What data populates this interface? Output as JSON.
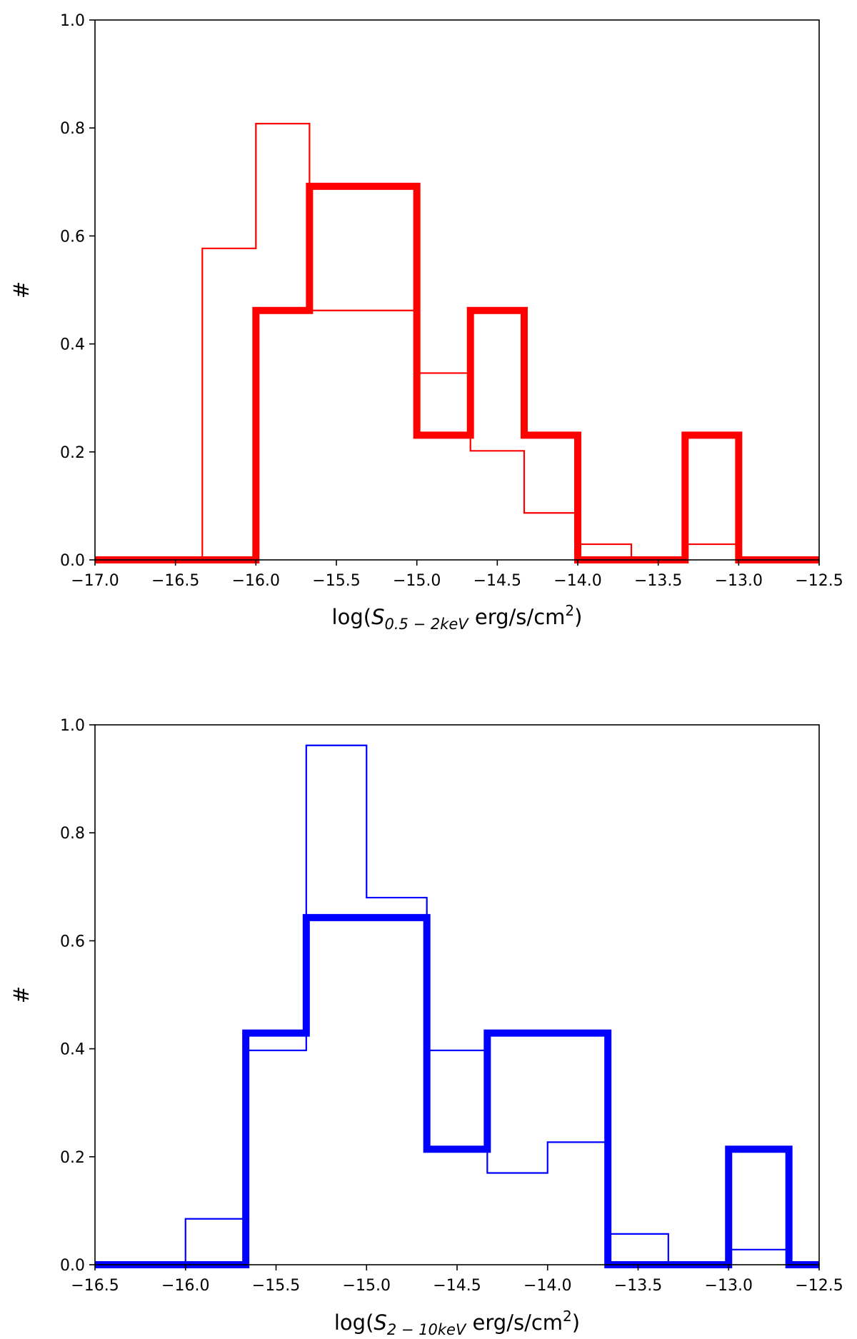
{
  "chart_data": [
    {
      "type": "histogram",
      "xlabel": {
        "prefix": "log(",
        "symbol": "S",
        "subscript": "0.5 − 2keV",
        "unit": " erg/s/cm",
        "superscript": "2",
        "suffix": ")"
      },
      "ylabel": "#",
      "xlim": [
        -17.0,
        -12.5
      ],
      "ylim": [
        0.0,
        1.0
      ],
      "xticks": [
        -17.0,
        -16.5,
        -16.0,
        -15.5,
        -15.0,
        -14.5,
        -14.0,
        -13.5,
        -13.0,
        -12.5
      ],
      "xtick_labels": [
        "−17.0",
        "−16.5",
        "−16.0",
        "−15.5",
        "−15.0",
        "−14.5",
        "−14.0",
        "−13.5",
        "−13.0",
        "−12.5"
      ],
      "yticks": [
        0.0,
        0.2,
        0.4,
        0.6,
        0.8,
        1.0
      ],
      "ytick_labels": [
        "0.0",
        "0.2",
        "0.4",
        "0.6",
        "0.8",
        "1.0"
      ],
      "grid": false,
      "series": [
        {
          "style": "thin",
          "color": "#ff0000",
          "steps": [
            {
              "x0": -17.0,
              "x1": -16.333,
              "y": 0.0
            },
            {
              "x0": -16.333,
              "x1": -16.0,
              "y": 0.577
            },
            {
              "x0": -16.0,
              "x1": -15.667,
              "y": 0.808
            },
            {
              "x0": -15.667,
              "x1": -15.0,
              "y": 0.462
            },
            {
              "x0": -15.0,
              "x1": -14.667,
              "y": 0.346
            },
            {
              "x0": -14.667,
              "x1": -14.333,
              "y": 0.202
            },
            {
              "x0": -14.333,
              "x1": -14.0,
              "y": 0.087
            },
            {
              "x0": -14.0,
              "x1": -13.667,
              "y": 0.029
            },
            {
              "x0": -13.667,
              "x1": -13.333,
              "y": 0.0
            },
            {
              "x0": -13.333,
              "x1": -13.0,
              "y": 0.029
            },
            {
              "x0": -13.0,
              "x1": -12.5,
              "y": 0.0
            }
          ]
        },
        {
          "style": "thick",
          "color": "#ff0000",
          "steps": [
            {
              "x0": -17.0,
              "x1": -16.0,
              "y": 0.0
            },
            {
              "x0": -16.0,
              "x1": -15.667,
              "y": 0.462
            },
            {
              "x0": -15.667,
              "x1": -15.0,
              "y": 0.692
            },
            {
              "x0": -15.0,
              "x1": -14.667,
              "y": 0.231
            },
            {
              "x0": -14.667,
              "x1": -14.333,
              "y": 0.462
            },
            {
              "x0": -14.333,
              "x1": -14.0,
              "y": 0.231
            },
            {
              "x0": -14.0,
              "x1": -13.333,
              "y": 0.0
            },
            {
              "x0": -13.333,
              "x1": -13.0,
              "y": 0.231
            },
            {
              "x0": -13.0,
              "x1": -12.5,
              "y": 0.0
            }
          ]
        }
      ]
    },
    {
      "type": "histogram",
      "xlabel": {
        "prefix": "log(",
        "symbol": "S",
        "subscript": "2 − 10keV",
        "unit": " erg/s/cm",
        "superscript": "2",
        "suffix": ")"
      },
      "ylabel": "#",
      "xlim": [
        -16.5,
        -12.5
      ],
      "ylim": [
        0.0,
        1.0
      ],
      "xticks": [
        -16.5,
        -16.0,
        -15.5,
        -15.0,
        -14.5,
        -14.0,
        -13.5,
        -13.0,
        -12.5
      ],
      "xtick_labels": [
        "−16.5",
        "−16.0",
        "−15.5",
        "−15.0",
        "−14.5",
        "−14.0",
        "−13.5",
        "−13.0",
        "−12.5"
      ],
      "yticks": [
        0.0,
        0.2,
        0.4,
        0.6,
        0.8,
        1.0
      ],
      "ytick_labels": [
        "0.0",
        "0.2",
        "0.4",
        "0.6",
        "0.8",
        "1.0"
      ],
      "grid": false,
      "series": [
        {
          "style": "thin",
          "color": "#0000ff",
          "steps": [
            {
              "x0": -16.5,
              "x1": -16.0,
              "y": 0.0
            },
            {
              "x0": -16.0,
              "x1": -15.667,
              "y": 0.085
            },
            {
              "x0": -15.667,
              "x1": -15.333,
              "y": 0.397
            },
            {
              "x0": -15.333,
              "x1": -15.0,
              "y": 0.962
            },
            {
              "x0": -15.0,
              "x1": -14.667,
              "y": 0.68
            },
            {
              "x0": -14.667,
              "x1": -14.333,
              "y": 0.397
            },
            {
              "x0": -14.333,
              "x1": -14.0,
              "y": 0.17
            },
            {
              "x0": -14.0,
              "x1": -13.667,
              "y": 0.227
            },
            {
              "x0": -13.667,
              "x1": -13.333,
              "y": 0.057
            },
            {
              "x0": -13.333,
              "x1": -13.0,
              "y": 0.0
            },
            {
              "x0": -13.0,
              "x1": -12.667,
              "y": 0.028
            },
            {
              "x0": -12.667,
              "x1": -12.5,
              "y": 0.0
            }
          ]
        },
        {
          "style": "thick",
          "color": "#0000ff",
          "steps": [
            {
              "x0": -16.5,
              "x1": -15.667,
              "y": 0.0
            },
            {
              "x0": -15.667,
              "x1": -15.333,
              "y": 0.429
            },
            {
              "x0": -15.333,
              "x1": -14.667,
              "y": 0.643
            },
            {
              "x0": -14.667,
              "x1": -14.333,
              "y": 0.214
            },
            {
              "x0": -14.333,
              "x1": -13.667,
              "y": 0.429
            },
            {
              "x0": -13.667,
              "x1": -13.0,
              "y": 0.0
            },
            {
              "x0": -13.0,
              "x1": -12.667,
              "y": 0.214
            },
            {
              "x0": -12.667,
              "x1": -12.5,
              "y": 0.0
            }
          ]
        }
      ]
    }
  ]
}
